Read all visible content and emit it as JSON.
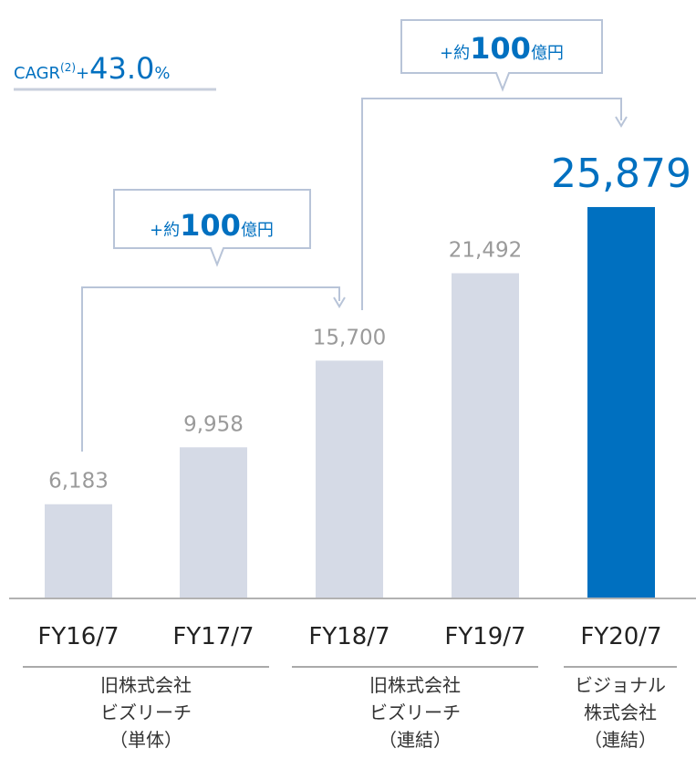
{
  "chart_data": {
    "type": "bar",
    "categories": [
      "FY16/7",
      "FY17/7",
      "FY18/7",
      "FY19/7",
      "FY20/7"
    ],
    "values": [
      6183,
      9958,
      15700,
      21492,
      25879
    ],
    "value_labels": [
      "6,183",
      "9,958",
      "15,700",
      "21,492",
      "25,879"
    ],
    "colors": [
      "#d5dae6",
      "#d5dae6",
      "#d5dae6",
      "#d5dae6",
      "#0070c0"
    ],
    "ylim": [
      0,
      30000
    ],
    "annotations": {
      "cagr": {
        "label": "CAGR",
        "note": "(2)",
        "sign": "+",
        "value": "43.0",
        "unit": "%"
      },
      "callouts": [
        {
          "prefix": "+約",
          "amount": "100",
          "unit": "億円"
        },
        {
          "prefix": "+約",
          "amount": "100",
          "unit": "億円"
        }
      ]
    },
    "groups": [
      [
        "旧株式会社",
        "ビズリーチ",
        "（単体）"
      ],
      [
        "旧株式会社",
        "ビズリーチ",
        "（連結）"
      ],
      [
        "ビジョナル",
        "株式会社",
        "（連結）"
      ]
    ]
  }
}
